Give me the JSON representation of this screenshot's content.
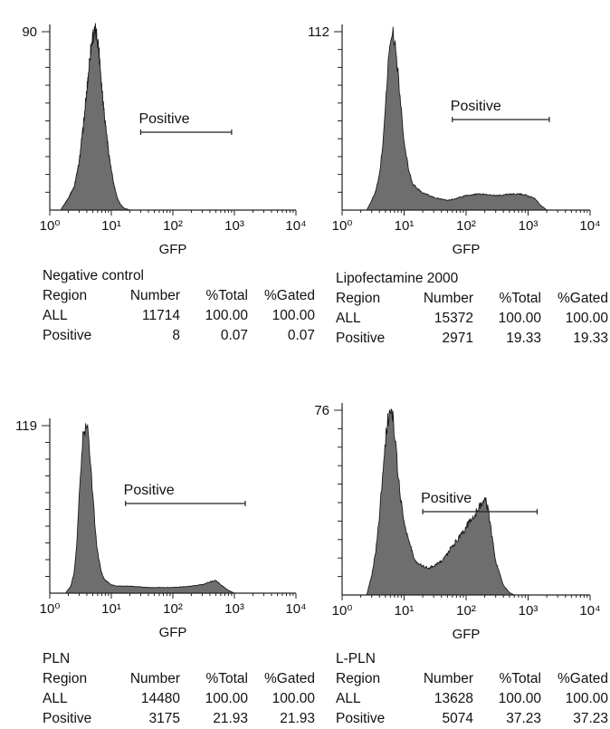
{
  "chart_data": [
    {
      "type": "histogram",
      "condition": "Negative control",
      "x_scale": "log",
      "xlim": [
        1,
        10000
      ],
      "xlabel": "GFP",
      "x_ticks": [
        "10⁰",
        "10¹",
        "10²",
        "10³",
        "10⁴"
      ],
      "y_max_label": "90",
      "ylim": [
        0,
        90
      ],
      "gate": {
        "label": "Positive",
        "x_range": [
          30,
          900
        ]
      },
      "histogram": {
        "x": [
          1.5,
          2,
          2.5,
          3,
          3.5,
          4,
          4.5,
          5,
          5.5,
          6,
          6.5,
          7,
          8,
          9,
          10,
          11,
          12,
          13,
          14,
          16,
          18,
          20
        ],
        "y": [
          0,
          6,
          12,
          24,
          42,
          60,
          78,
          88,
          90,
          86,
          76,
          62,
          44,
          30,
          20,
          13,
          8,
          5,
          3,
          1,
          0.5,
          0
        ]
      },
      "stats": {
        "headers": [
          "Region",
          "Number",
          "%Total",
          "%Gated"
        ],
        "rows": [
          [
            "ALL",
            "11714",
            "100.00",
            "100.00"
          ],
          [
            "Positive",
            "8",
            "0.07",
            "0.07"
          ]
        ]
      }
    },
    {
      "type": "histogram",
      "condition": "Lipofectamine 2000",
      "x_scale": "log",
      "xlim": [
        1,
        10000
      ],
      "xlabel": "GFP",
      "x_ticks": [
        "10⁰",
        "10¹",
        "10²",
        "10³",
        "10⁴"
      ],
      "y_max_label": "112",
      "ylim": [
        0,
        112
      ],
      "gate": {
        "label": "Positive",
        "x_range": [
          60,
          2200
        ]
      },
      "histogram": {
        "x": [
          2.5,
          3,
          3.5,
          4,
          4.5,
          5,
          5.5,
          6,
          6.5,
          7,
          8,
          9,
          10,
          12,
          14,
          17,
          20,
          30,
          50,
          80,
          100,
          150,
          200,
          300,
          500,
          800,
          1000,
          1300,
          1600,
          2000
        ],
        "y": [
          0,
          6,
          12,
          22,
          40,
          65,
          90,
          106,
          112,
          106,
          86,
          62,
          42,
          24,
          16,
          13,
          11,
          8,
          6,
          8,
          9,
          10,
          10,
          9,
          10,
          10,
          9,
          7,
          3,
          0
        ]
      },
      "stats": {
        "headers": [
          "Region",
          "Number",
          "%Total",
          "%Gated"
        ],
        "rows": [
          [
            "ALL",
            "15372",
            "100.00",
            "100.00"
          ],
          [
            "Positive",
            "2971",
            "19.33",
            "19.33"
          ]
        ]
      }
    },
    {
      "type": "histogram",
      "condition": "PLN",
      "x_scale": "log",
      "xlim": [
        1,
        10000
      ],
      "xlabel": "GFP",
      "x_ticks": [
        "10⁰",
        "10¹",
        "10²",
        "10³",
        "10⁴"
      ],
      "y_max_label": "119",
      "ylim": [
        0,
        119
      ],
      "gate": {
        "label": "Positive",
        "x_range": [
          17,
          1500
        ]
      },
      "histogram": {
        "x": [
          1.8,
          2.2,
          2.5,
          2.8,
          3.1,
          3.5,
          4,
          4.5,
          5,
          5.5,
          6,
          7,
          8,
          10,
          12,
          15,
          20,
          40,
          70,
          100,
          200,
          300,
          400,
          500,
          600,
          800,
          1000
        ],
        "y": [
          0,
          5,
          15,
          40,
          80,
          112,
          119,
          100,
          70,
          45,
          28,
          14,
          9,
          6,
          5,
          5,
          5,
          4,
          4,
          4,
          5,
          6,
          8,
          9,
          6,
          2,
          0
        ]
      },
      "stats": {
        "headers": [
          "Region",
          "Number",
          "%Total",
          "%Gated"
        ],
        "rows": [
          [
            "ALL",
            "14480",
            "100.00",
            "100.00"
          ],
          [
            "Positive",
            "3175",
            "21.93",
            "21.93"
          ]
        ]
      }
    },
    {
      "type": "histogram",
      "condition": "L-PLN",
      "x_scale": "log",
      "xlim": [
        1,
        10000
      ],
      "xlabel": "GFP",
      "x_ticks": [
        "10⁰",
        "10¹",
        "10²",
        "10³",
        "10⁴"
      ],
      "y_max_label": "76",
      "ylim": [
        0,
        76
      ],
      "gate": {
        "label": "Positive",
        "x_range": [
          20,
          1400
        ]
      },
      "histogram": {
        "x": [
          2.5,
          3,
          3.5,
          4,
          4.5,
          5,
          5.5,
          6,
          6.5,
          7,
          8,
          9,
          10,
          12,
          15,
          20,
          25,
          30,
          40,
          50,
          60,
          80,
          100,
          130,
          160,
          200,
          230,
          260,
          300,
          400,
          500,
          600
        ],
        "y": [
          0,
          8,
          18,
          32,
          50,
          64,
          72,
          76,
          74,
          66,
          50,
          38,
          30,
          22,
          14,
          12,
          11,
          12,
          14,
          17,
          20,
          24,
          28,
          32,
          36,
          40,
          34,
          24,
          14,
          4,
          1,
          0
        ]
      },
      "stats": {
        "headers": [
          "Region",
          "Number",
          "%Total",
          "%Gated"
        ],
        "rows": [
          [
            "ALL",
            "13628",
            "100.00",
            "100.00"
          ],
          [
            "Positive",
            "5074",
            "37.23",
            "37.23"
          ]
        ]
      }
    }
  ]
}
